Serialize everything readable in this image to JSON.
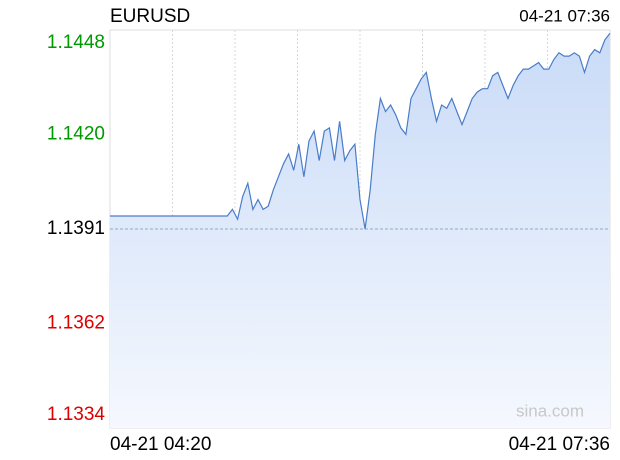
{
  "chart_data": {
    "type": "line",
    "title": "EURUSD",
    "timestamp": "04-21 07:36",
    "watermark": "sina.com",
    "categories": [
      "04-21 04:20",
      null,
      null,
      null,
      null,
      null,
      null,
      null,
      null,
      null,
      null,
      null,
      null,
      null,
      null,
      null,
      null,
      null,
      null,
      null,
      null,
      null,
      null,
      null,
      null,
      null,
      null,
      null,
      null,
      null,
      null,
      null,
      null,
      null,
      null,
      null,
      null,
      null,
      null,
      null,
      null,
      null,
      null,
      null,
      null,
      null,
      null,
      null,
      null,
      null,
      null,
      null,
      null,
      null,
      null,
      null,
      null,
      null,
      null,
      null,
      null,
      null,
      null,
      null,
      null,
      null,
      null,
      null,
      null,
      null,
      null,
      null,
      null,
      null,
      null,
      null,
      null,
      null,
      null,
      null,
      null,
      null,
      null,
      null,
      null,
      null,
      null,
      null,
      null,
      null,
      null,
      null,
      null,
      null,
      null,
      null,
      null,
      null,
      "04-21 07:36"
    ],
    "series": [
      {
        "name": "EURUSD",
        "color": "#4a7cc8",
        "values": [
          1.1395,
          1.1395,
          1.1395,
          1.1395,
          1.1395,
          1.1395,
          1.1395,
          1.1395,
          1.1395,
          1.1395,
          1.1395,
          1.1395,
          1.1395,
          1.1395,
          1.1395,
          1.1395,
          1.1395,
          1.1395,
          1.1395,
          1.1395,
          1.1395,
          1.1395,
          1.1395,
          1.1395,
          1.1397,
          1.1394,
          1.1401,
          1.1405,
          1.1397,
          1.14,
          1.1397,
          1.1398,
          1.1403,
          1.1407,
          1.1411,
          1.1414,
          1.1409,
          1.1417,
          1.1407,
          1.1418,
          1.1421,
          1.1412,
          1.1421,
          1.1422,
          1.1412,
          1.1424,
          1.1412,
          1.1415,
          1.1417,
          1.14,
          1.1391,
          1.1403,
          1.142,
          1.1431,
          1.1427,
          1.1429,
          1.1426,
          1.1422,
          1.142,
          1.1431,
          1.1434,
          1.1437,
          1.1439,
          1.1431,
          1.1424,
          1.1429,
          1.1428,
          1.1431,
          1.1427,
          1.1423,
          1.1427,
          1.1431,
          1.1433,
          1.1434,
          1.1434,
          1.1438,
          1.1439,
          1.1435,
          1.1431,
          1.1435,
          1.1438,
          1.144,
          1.144,
          1.1441,
          1.1442,
          1.144,
          1.144,
          1.1443,
          1.1445,
          1.1444,
          1.1444,
          1.1445,
          1.1444,
          1.1439,
          1.1444,
          1.1446,
          1.1445,
          1.1449,
          1.1451
        ]
      }
    ],
    "ylim": [
      1.133,
      1.1452
    ],
    "yticks": [
      1.1448,
      {
        "value": 1.142,
        "label": "1.1420"
      },
      1.1391,
      1.1362,
      1.1334
    ],
    "reference_line": 1.1391,
    "up_color": "#009900",
    "down_color": "#dd0000",
    "neutral_color": "#000000"
  }
}
